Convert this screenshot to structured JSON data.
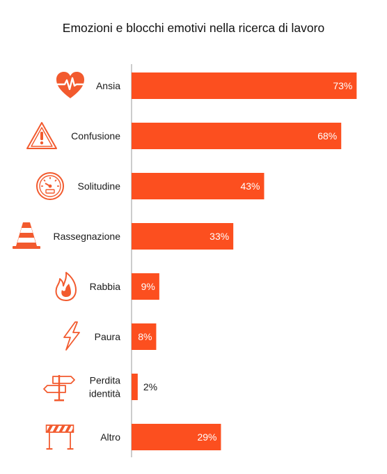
{
  "chart_data": {
    "type": "bar",
    "orientation": "horizontal",
    "title": "Emozioni e blocchi emotivi nella ricerca di lavoro",
    "xlabel": "",
    "ylabel": "",
    "xlim": [
      0,
      100
    ],
    "grid": false,
    "legend": "none",
    "categories": [
      "Ansia",
      "Confusione",
      "Solitudine",
      "Rassegnazione",
      "Rabbia",
      "Paura",
      "Perdita identità",
      "Altro"
    ],
    "category_lines": [
      [
        "Ansia"
      ],
      [
        "Confusione"
      ],
      [
        "Solitudine"
      ],
      [
        "Rassegnazione"
      ],
      [
        "Rabbia"
      ],
      [
        "Paura"
      ],
      [
        "Perdita",
        "identità"
      ],
      [
        "Altro"
      ]
    ],
    "values": [
      73,
      68,
      43,
      33,
      9,
      8,
      2,
      29
    ],
    "value_labels": [
      "73%",
      "68%",
      "43%",
      "33%",
      "9%",
      "8%",
      "2%",
      "29%"
    ],
    "icons": [
      "heart-pulse-icon",
      "warning-triangle-icon",
      "gauge-icon",
      "traffic-cone-icon",
      "flame-icon",
      "lightning-icon",
      "signpost-icon",
      "barrier-icon"
    ],
    "colors": {
      "bar": "#fc4f1f",
      "icon": "#f25a2e",
      "axis": "#9a9a9a",
      "label_inside": "#ffffff",
      "label_outside": "#1a1a1a"
    }
  }
}
